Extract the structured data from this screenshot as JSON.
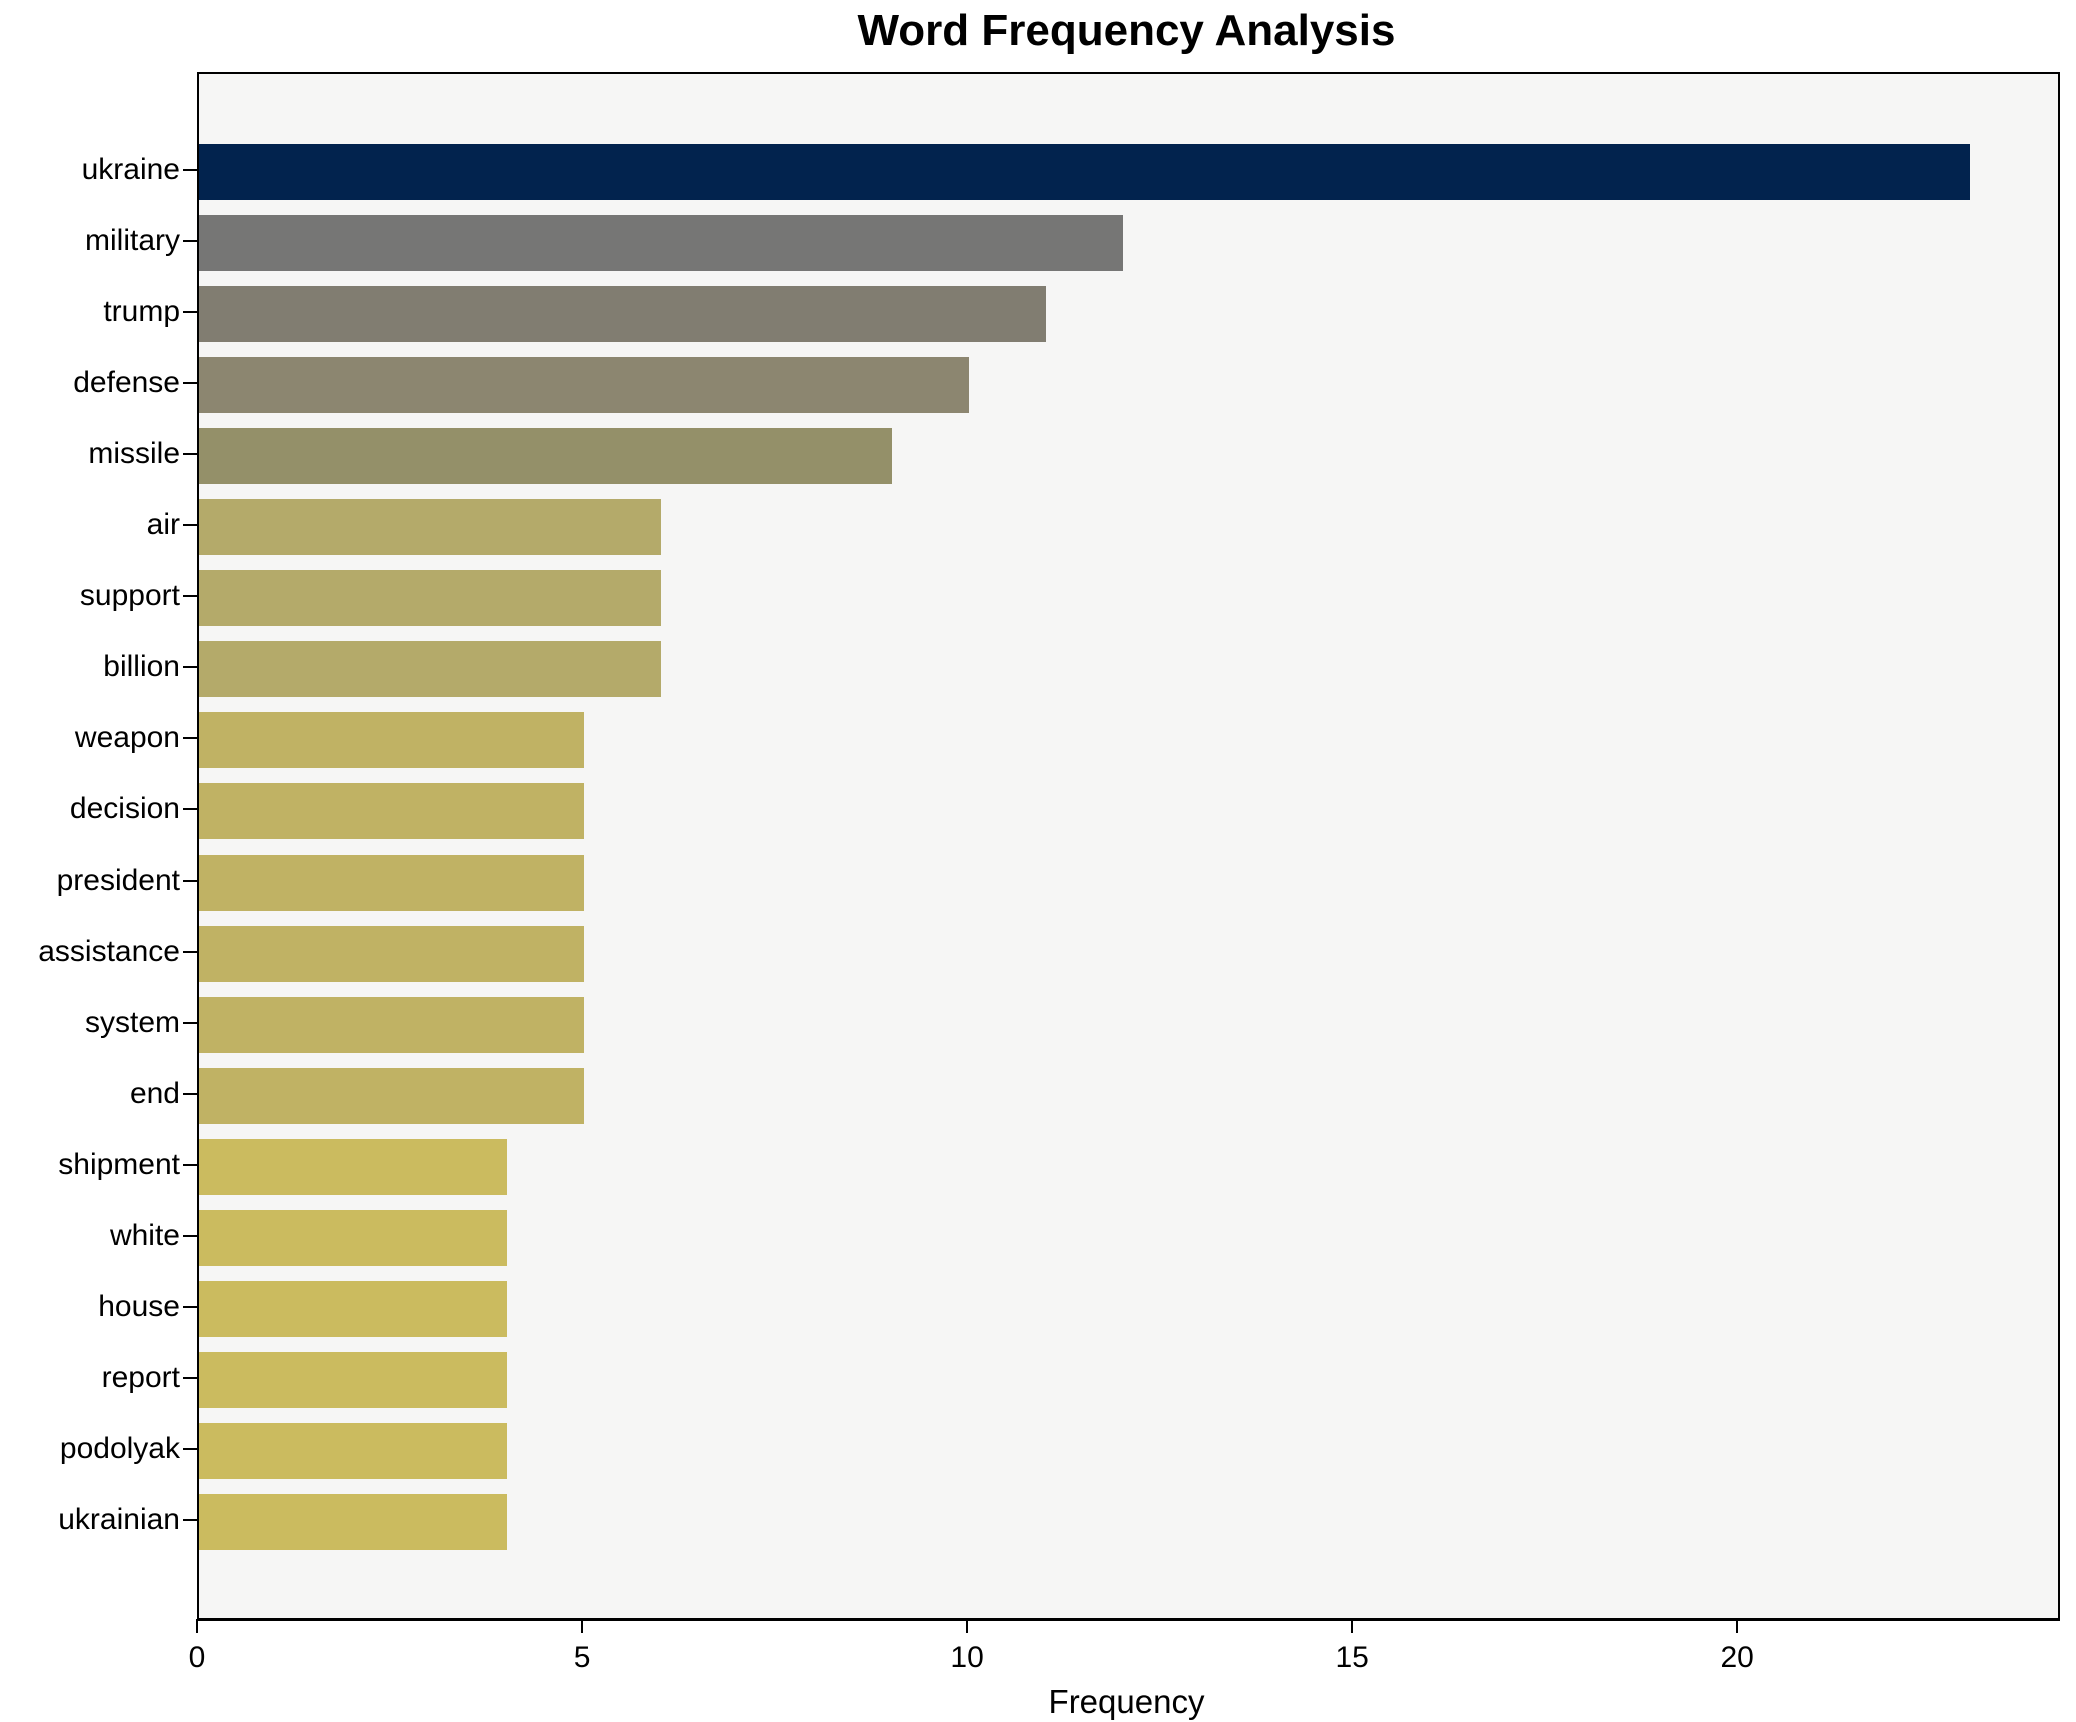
{
  "chart_data": {
    "type": "bar",
    "orientation": "horizontal",
    "title": "Word Frequency Analysis",
    "xlabel": "Frequency",
    "ylabel": "",
    "categories": [
      "ukraine",
      "military",
      "trump",
      "defense",
      "missile",
      "air",
      "support",
      "billion",
      "weapon",
      "decision",
      "president",
      "assistance",
      "system",
      "end",
      "shipment",
      "white",
      "house",
      "report",
      "podolyak",
      "ukrainian"
    ],
    "values": [
      23,
      12,
      11,
      10,
      9,
      6,
      6,
      6,
      5,
      5,
      5,
      5,
      5,
      5,
      4,
      4,
      4,
      4,
      4,
      4
    ],
    "bar_colors": [
      "#02234E",
      "#767675",
      "#817D71",
      "#8C8670",
      "#949069",
      "#B4AA6A",
      "#B4AA6A",
      "#B4AA6A",
      "#C0B264",
      "#C0B264",
      "#C0B264",
      "#C0B264",
      "#C0B264",
      "#C0B264",
      "#CBBB5F",
      "#CBBB5F",
      "#CBBB5F",
      "#CBBB5F",
      "#CBBB5F",
      "#CBBB5F"
    ],
    "x_ticks": [
      0,
      5,
      10,
      15,
      20
    ],
    "xlim": [
      0,
      24.14
    ],
    "grid": false,
    "legend": null,
    "plot_background": "#F6F6F5",
    "figure_background": "#FFFFFF",
    "axis_color": "#000000"
  }
}
